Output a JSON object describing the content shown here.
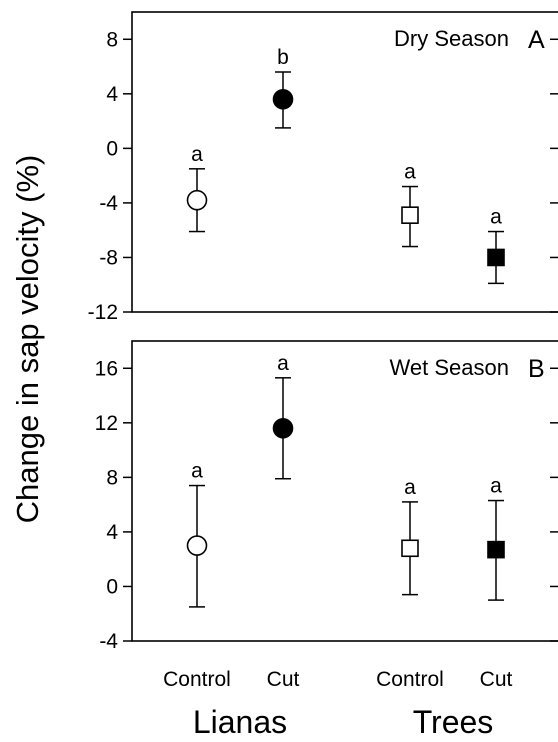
{
  "figure": {
    "ylabel": "Change in sap velocity (%)"
  },
  "x_axis": {
    "groups": [
      "Control",
      "Cut",
      "Control",
      "Cut"
    ],
    "categories": [
      "Lianas",
      "Trees"
    ]
  },
  "chart_data": [
    {
      "type": "scatter",
      "title": "Dry Season",
      "panel_letter": "A",
      "ylabel": "Change in sap velocity (%)",
      "ylim": [
        -12,
        10
      ],
      "yticks": [
        -12,
        -8,
        -4,
        0,
        4,
        8
      ],
      "x": [
        "Lianas Control",
        "Lianas Cut",
        "Trees Control",
        "Trees Cut"
      ],
      "points": [
        {
          "group": "Lianas",
          "treatment": "Control",
          "marker": "circle",
          "filled": false,
          "mean": -3.8,
          "err_low": -6.1,
          "err_high": -1.5,
          "letter": "a"
        },
        {
          "group": "Lianas",
          "treatment": "Cut",
          "marker": "circle",
          "filled": true,
          "mean": 3.6,
          "err_low": 1.5,
          "err_high": 5.6,
          "letter": "b"
        },
        {
          "group": "Trees",
          "treatment": "Control",
          "marker": "square",
          "filled": false,
          "mean": -4.9,
          "err_low": -7.2,
          "err_high": -2.8,
          "letter": "a"
        },
        {
          "group": "Trees",
          "treatment": "Cut",
          "marker": "square",
          "filled": true,
          "mean": -8.0,
          "err_low": -9.9,
          "err_high": -6.1,
          "letter": "a"
        }
      ]
    },
    {
      "type": "scatter",
      "title": "Wet Season",
      "panel_letter": "B",
      "ylabel": "Change in sap velocity (%)",
      "ylim": [
        -4,
        18
      ],
      "yticks": [
        -4,
        0,
        4,
        8,
        12,
        16
      ],
      "x": [
        "Lianas Control",
        "Lianas Cut",
        "Trees Control",
        "Trees Cut"
      ],
      "points": [
        {
          "group": "Lianas",
          "treatment": "Control",
          "marker": "circle",
          "filled": false,
          "mean": 3.0,
          "err_low": -1.5,
          "err_high": 7.4,
          "letter": "a"
        },
        {
          "group": "Lianas",
          "treatment": "Cut",
          "marker": "circle",
          "filled": true,
          "mean": 11.6,
          "err_low": 7.9,
          "err_high": 15.3,
          "letter": "a"
        },
        {
          "group": "Trees",
          "treatment": "Control",
          "marker": "square",
          "filled": false,
          "mean": 2.8,
          "err_low": -0.6,
          "err_high": 6.2,
          "letter": "a"
        },
        {
          "group": "Trees",
          "treatment": "Cut",
          "marker": "square",
          "filled": true,
          "mean": 2.7,
          "err_low": -1.0,
          "err_high": 6.3,
          "letter": "a"
        }
      ]
    }
  ]
}
